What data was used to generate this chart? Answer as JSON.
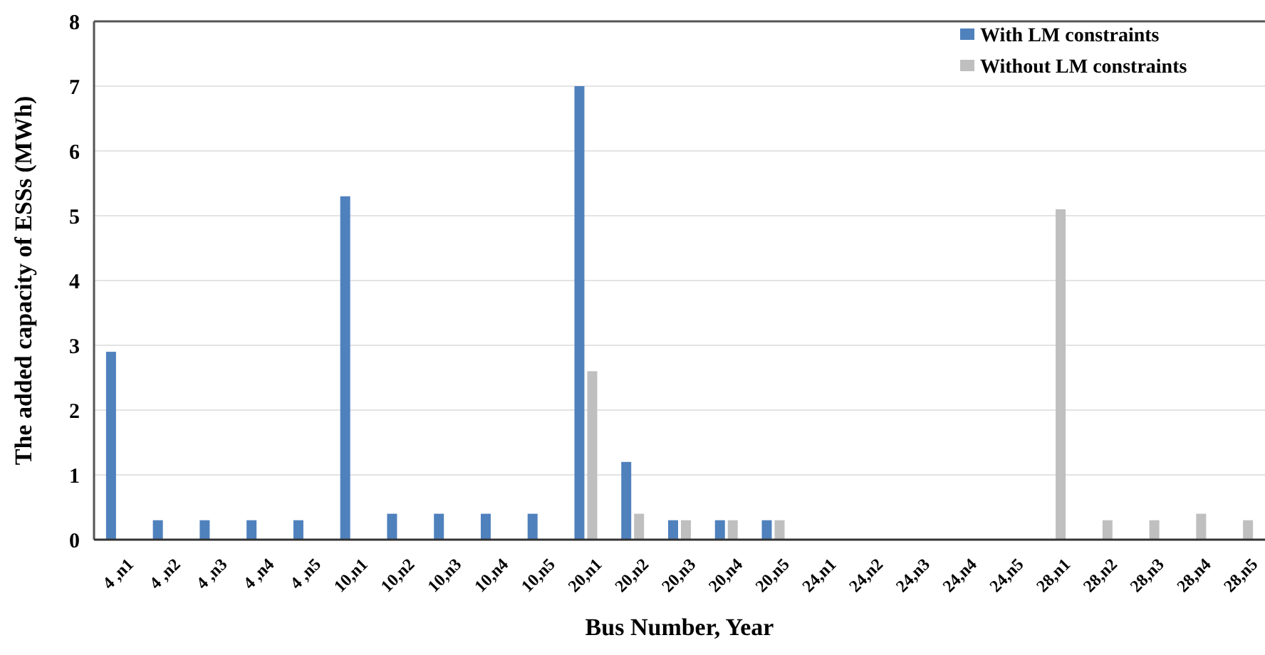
{
  "chart_data": {
    "type": "bar",
    "xlabel": "Bus Number, Year",
    "ylabel": "The added capacity of ESSs (MWh)",
    "categories": [
      "4 ,n1",
      "4 ,n2",
      "4 ,n3",
      "4 ,n4",
      "4 ,n5",
      "10,n1",
      "10,n2",
      "10,n3",
      "10,n4",
      "10,n5",
      "20,n1",
      "20,n2",
      "20,n3",
      "20,n4",
      "20,n5",
      "24,n1",
      "24,n2",
      "24,n3",
      "24,n4",
      "24,n5",
      "28,n1",
      "28,n2",
      "28,n3",
      "28,n4",
      "28,n5"
    ],
    "series": [
      {
        "name": "With LM constraints",
        "color": "#4f81bd",
        "values": [
          2.9,
          0.3,
          0.3,
          0.3,
          0.3,
          5.3,
          0.4,
          0.4,
          0.4,
          0.4,
          7.0,
          1.2,
          0.3,
          0.3,
          0.3,
          0,
          0,
          0,
          0,
          0,
          0,
          0,
          0,
          0,
          0
        ]
      },
      {
        "name": "Without LM constraints",
        "color": "#bfbfbf",
        "values": [
          0,
          0,
          0,
          0,
          0,
          0,
          0,
          0,
          0,
          0,
          2.6,
          0.4,
          0.3,
          0.3,
          0.3,
          0,
          0,
          0,
          0,
          0,
          5.1,
          0.3,
          0.3,
          0.4,
          0.3
        ]
      }
    ],
    "ylim": [
      0,
      8
    ],
    "yticks": [
      0,
      1,
      2,
      3,
      4,
      5,
      6,
      7,
      8
    ],
    "grid": "y",
    "legend": "top right"
  }
}
